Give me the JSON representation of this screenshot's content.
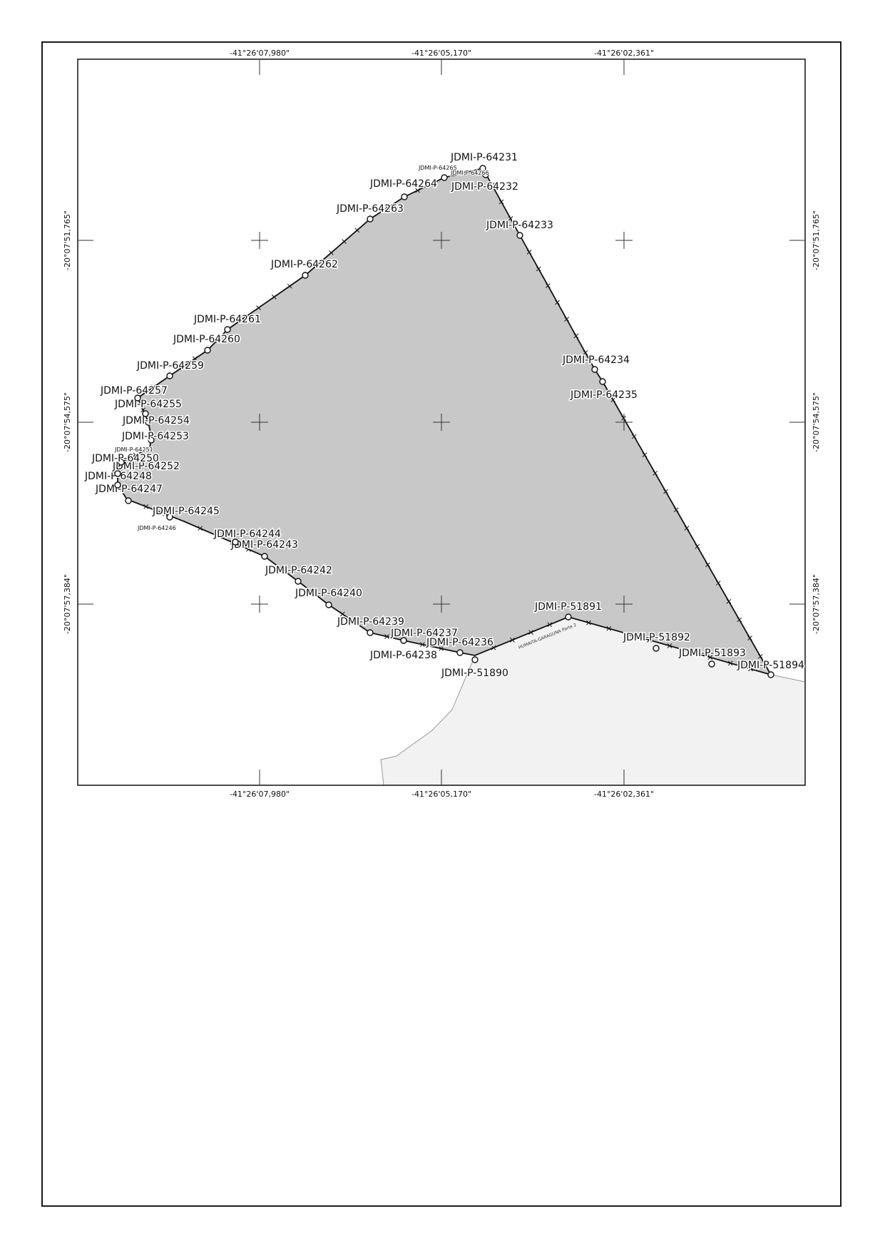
{
  "map": {
    "fill_color": "#c8c8c8",
    "outside_fill_color": "#f2f2f2",
    "line_color": "#111111",
    "road_label": "HUMAITA-GARAGUNA Parte 2",
    "longitude_labels": [
      "-41°26'07,980\"",
      "-41°26'05,170\"",
      "-41°26'02,361\""
    ],
    "latitude_labels": [
      "-20°07'51,765\"",
      "-20°07'54,575\"",
      "-20°07'57,384\""
    ],
    "vertices": [
      {
        "id": "JDMI-P-64231",
        "small": false
      },
      {
        "id": "JDMI-P-64232",
        "small": false
      },
      {
        "id": "JDMI-P-64233",
        "small": false
      },
      {
        "id": "JDMI-P-64234",
        "small": false
      },
      {
        "id": "JDMI-P-64235",
        "small": false
      },
      {
        "id": "JDMI-P-51894",
        "small": false
      },
      {
        "id": "JDMI-P-51893",
        "small": false
      },
      {
        "id": "JDMI-P-51892",
        "small": false
      },
      {
        "id": "JDMI-P-51891",
        "small": false
      },
      {
        "id": "JDMI-P-51890",
        "small": false
      },
      {
        "id": "JDMI-P-64236",
        "small": false
      },
      {
        "id": "JDMI-P-64237",
        "small": false
      },
      {
        "id": "JDMI-P-64238",
        "small": false
      },
      {
        "id": "JDMI-P-64239",
        "small": false
      },
      {
        "id": "JDMI-P-64240",
        "small": false
      },
      {
        "id": "JDMI-P-64242",
        "small": false
      },
      {
        "id": "JDMI-P-64243",
        "small": false
      },
      {
        "id": "JDMI-P-64244",
        "small": false
      },
      {
        "id": "JDMI-P-64246",
        "small": true
      },
      {
        "id": "JDMI-P-64245",
        "small": false
      },
      {
        "id": "JDMI-P-64247",
        "small": false
      },
      {
        "id": "JDMI-P-64248",
        "small": false
      },
      {
        "id": "JDMI-P-64252",
        "small": false
      },
      {
        "id": "JDMI-P-64250",
        "small": false
      },
      {
        "id": "JDMI-P-64251",
        "small": true
      },
      {
        "id": "JDMI-P-64253",
        "small": false
      },
      {
        "id": "JDMI-P-64254",
        "small": false
      },
      {
        "id": "JDMI-P-64255",
        "small": false
      },
      {
        "id": "JDMI-P-64257",
        "small": false
      },
      {
        "id": "JDMI-P-64259",
        "small": false
      },
      {
        "id": "JDMI-P-64260",
        "small": false
      },
      {
        "id": "JDMI-P-64261",
        "small": false
      },
      {
        "id": "JDMI-P-64262",
        "small": false
      },
      {
        "id": "JDMI-P-64263",
        "small": false
      },
      {
        "id": "JDMI-P-64264",
        "small": false
      },
      {
        "id": "JDMI-P-64265",
        "small": true
      },
      {
        "id": "JDMI-P-64266",
        "small": true
      }
    ]
  }
}
